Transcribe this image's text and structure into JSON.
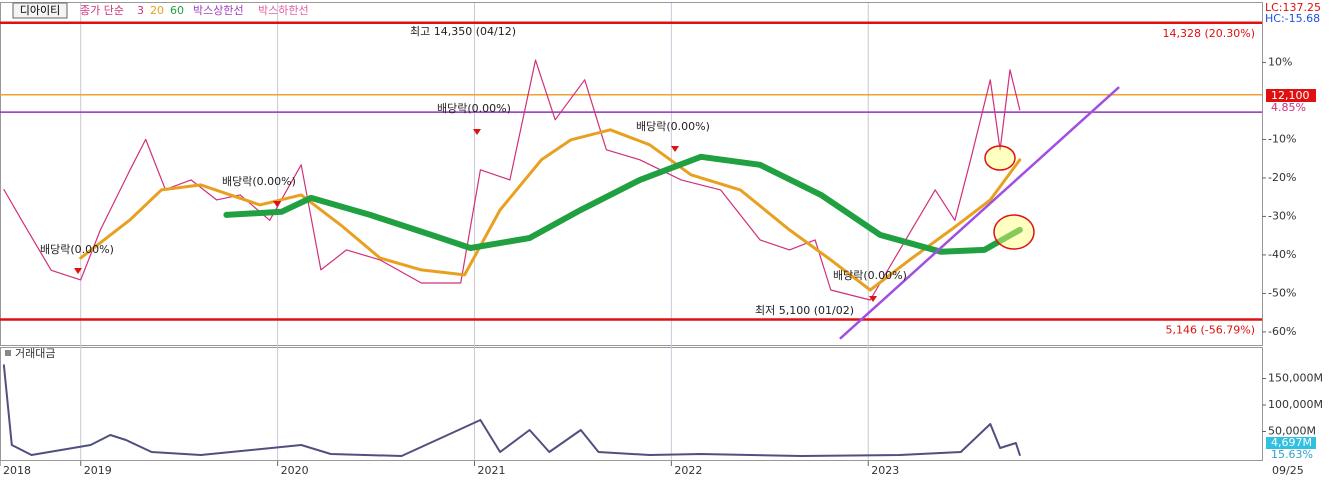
{
  "chart_data": [
    {
      "type": "line",
      "title": "디아이티",
      "legend_title": "종가 단순",
      "xlim": [
        2018.59,
        2025.0
      ],
      "xticks": [
        {
          "value": 2018.59,
          "label": "2018"
        },
        2019,
        2020,
        2021,
        2022,
        2023
      ],
      "date_label": "09/25",
      "ylim": [
        -63.4,
        25.7
      ],
      "yticks": [
        {
          "value": 10,
          "label": "10%"
        },
        {
          "value": -10,
          "label": "-10%"
        },
        {
          "value": -20,
          "label": "-20%"
        },
        {
          "value": -30,
          "label": "-30%"
        },
        {
          "value": -40,
          "label": "-40%"
        },
        {
          "value": -50,
          "label": "-50%"
        },
        {
          "value": -60,
          "label": "-60%"
        }
      ],
      "series": [
        {
          "name": "3",
          "color": "#d0307a",
          "x": [
            2018.61,
            2018.7,
            2018.85,
            2019.0,
            2019.1,
            2019.25,
            2019.33,
            2019.43,
            2019.56,
            2019.69,
            2019.81,
            2019.96,
            2020.12,
            2020.22,
            2020.35,
            2020.52,
            2020.73,
            2020.93,
            2021.03,
            2021.18,
            2021.31,
            2021.41,
            2021.56,
            2021.67,
            2021.84,
            2022.05,
            2022.25,
            2022.45,
            2022.6,
            2022.73,
            2022.81,
            2023.01,
            2023.16,
            2023.34,
            2023.44,
            2023.52,
            2023.62,
            2023.67,
            2023.72,
            2023.77
          ],
          "values": [
            -23,
            -31,
            -44,
            -46.5,
            -33.5,
            -18,
            -10,
            -23,
            -20.5,
            -25.7,
            -24.4,
            -31,
            -16.6,
            -43.9,
            -38.7,
            -41.3,
            -47.3,
            -47.3,
            -17.9,
            -20.5,
            10.6,
            -4.9,
            5.5,
            -12.7,
            -15.3,
            -20.5,
            -23.1,
            -36.1,
            -38.7,
            -36.1,
            -49.1,
            -51.7,
            -38.7,
            -23.1,
            -31,
            -15.3,
            5.5,
            -12.7,
            8.1,
            -2.3
          ]
        },
        {
          "name": "20",
          "color": "#e8a020",
          "x": [
            2019.0,
            2019.25,
            2019.41,
            2019.61,
            2019.91,
            2020.12,
            2020.32,
            2020.52,
            2020.73,
            2020.95,
            2021.13,
            2021.34,
            2021.49,
            2021.69,
            2021.89,
            2022.1,
            2022.35,
            2022.6,
            2022.81,
            2023.01,
            2023.21,
            2023.42,
            2023.62,
            2023.77
          ],
          "values": [
            -40.8,
            -30.9,
            -23.1,
            -21.8,
            -27,
            -24.4,
            -32.2,
            -40.8,
            -43.9,
            -45.2,
            -28.3,
            -15.3,
            -10.1,
            -7.5,
            -11.4,
            -19.2,
            -23.1,
            -33.5,
            -41.3,
            -49.1,
            -41.3,
            -33.5,
            -25.7,
            -15.3
          ]
        },
        {
          "name": "60",
          "color": "#20a040",
          "x": [
            2019.74,
            2020.02,
            2020.17,
            2020.47,
            2020.78,
            2020.98,
            2021.28,
            2021.54,
            2021.84,
            2022.15,
            2022.45,
            2022.76,
            2023.06,
            2023.37,
            2023.59,
            2023.77
          ],
          "values": [
            -29.6,
            -28.8,
            -25.2,
            -29.6,
            -34.8,
            -38.2,
            -35.6,
            -28.3,
            -20.5,
            -14.5,
            -16.6,
            -24.4,
            -34.8,
            -39.2,
            -38.7,
            -33.5
          ]
        }
      ],
      "legend_extra": [
        {
          "text": "박스상한선",
          "color": "#a040c0"
        },
        {
          "text": "박스하한선",
          "color": "#e060a0"
        }
      ],
      "hlines": [
        {
          "value": 20.3,
          "color": "#e01010",
          "label": "14,328 (20.30%)"
        },
        {
          "value": -56.79,
          "color": "#e01010",
          "label": "5,146 (-56.79%)"
        },
        {
          "value": 1.6,
          "color": "#f0a030"
        },
        {
          "value": -2.9,
          "color": "#9030c0"
        }
      ],
      "trendline": {
        "x": [
          2022.86,
          2024.27
        ],
        "y": [
          -61.6,
          3.4
        ],
        "color": "#a050e0"
      },
      "lc": "LC:137.25",
      "hc": "HC:-15.68",
      "current_price": "12,100",
      "change": "4.85%",
      "annotations": [
        "최고 14,350 (04/12)",
        "최저 5,100 (01/02)",
        "배당락(0.00%)",
        "배당락(0.00%)",
        "배당락(0.00%)",
        "배당락(0.00%)",
        "배당락(0.00%)"
      ]
    },
    {
      "type": "line",
      "title": "거래대금",
      "xlim": [
        2018.59,
        2025.0
      ],
      "ylim": [
        0,
        203800
      ],
      "yticks": [
        {
          "value": 150000,
          "label": "150,000M"
        },
        {
          "value": 100000,
          "label": "100,000M"
        },
        {
          "value": 50000,
          "label": "50,000M"
        }
      ],
      "series": [
        {
          "name": "거래대금",
          "color": "#505080",
          "x": [
            2018.61,
            2018.65,
            2018.75,
            2019.05,
            2019.15,
            2019.23,
            2019.36,
            2019.61,
            2020.12,
            2020.27,
            2020.63,
            2021.03,
            2021.13,
            2021.28,
            2021.38,
            2021.54,
            2021.63,
            2021.89,
            2022.15,
            2022.66,
            2023.16,
            2023.47,
            2023.62,
            2023.67,
            2023.75,
            2023.77
          ],
          "values": [
            175000,
            24500,
            5660,
            24500,
            43400,
            34000,
            11300,
            5660,
            24500,
            7550,
            3770,
            71700,
            11300,
            52800,
            11300,
            52800,
            11300,
            5660,
            7550,
            3770,
            5660,
            11300,
            64200,
            18900,
            28300,
            5660
          ]
        }
      ],
      "current_value": "4,697M",
      "current_change": "15.63%"
    }
  ]
}
